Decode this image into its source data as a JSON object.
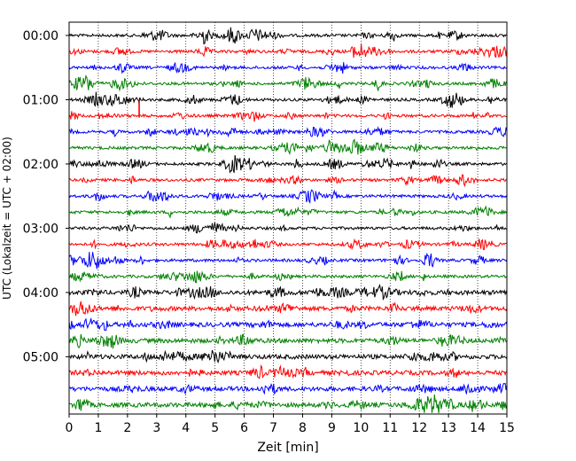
{
  "chart_data": {
    "type": "line",
    "title": "",
    "xlabel": "Zeit  [min]",
    "ylabel": "UTC (Lokalzeit = UTC + 02:00)",
    "xlim": [
      0,
      15
    ],
    "x_ticks": [
      0,
      1,
      2,
      3,
      4,
      5,
      6,
      7,
      8,
      9,
      10,
      11,
      12,
      13,
      14,
      15
    ],
    "y_ticks": [
      "00:00",
      "01:00",
      "02:00",
      "03:00",
      "04:00",
      "05:00"
    ],
    "grid": "vertical dotted",
    "trace_interval_minutes": 15,
    "trace_count": 24,
    "trace_colors": [
      "#000000",
      "#ff0000",
      "#0000ff",
      "#008000"
    ],
    "events": [
      {
        "trace_index": 5,
        "minute": 2.4,
        "note": "spike"
      }
    ]
  }
}
